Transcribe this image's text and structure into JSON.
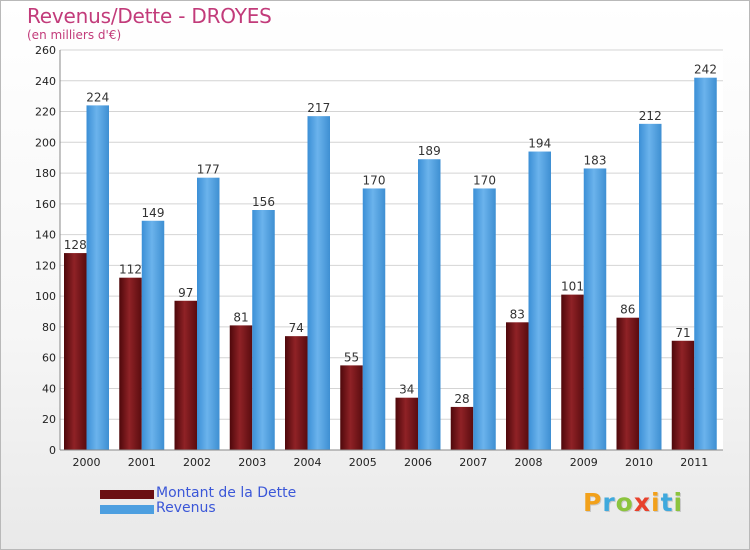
{
  "chart_data": {
    "type": "bar",
    "title": "Revenus/Dette - DROYES",
    "subtitle": "(en milliers d'€)",
    "categories": [
      "2000",
      "2001",
      "2002",
      "2003",
      "2004",
      "2005",
      "2006",
      "2007",
      "2008",
      "2009",
      "2010",
      "2011"
    ],
    "series": [
      {
        "name": "Montant de la Dette",
        "color": "#6b0f12",
        "values": [
          128,
          112,
          97,
          81,
          74,
          55,
          34,
          28,
          83,
          101,
          86,
          71
        ]
      },
      {
        "name": "Revenus",
        "color": "#4d9fe0",
        "values": [
          224,
          149,
          177,
          156,
          217,
          170,
          189,
          170,
          194,
          183,
          212,
          242
        ]
      }
    ],
    "ylim": [
      0,
      260
    ],
    "yticks": [
      0,
      20,
      40,
      60,
      80,
      100,
      120,
      140,
      160,
      180,
      200,
      220,
      240,
      260
    ],
    "grid": true,
    "xlabel": "",
    "ylabel": ""
  },
  "legend": {
    "items": [
      {
        "label": "Montant de la Dette",
        "color": "#6b0f12"
      },
      {
        "label": "Revenus",
        "color": "#4d9fe0"
      }
    ]
  },
  "logo": {
    "letters": [
      "P",
      "r",
      "o",
      "x",
      "i",
      "t",
      "i"
    ],
    "colors": [
      "#f2a11b",
      "#3fa9dd",
      "#8cc43e",
      "#e8412c",
      "#f2a11b",
      "#3fa9dd",
      "#8cc43e"
    ]
  }
}
